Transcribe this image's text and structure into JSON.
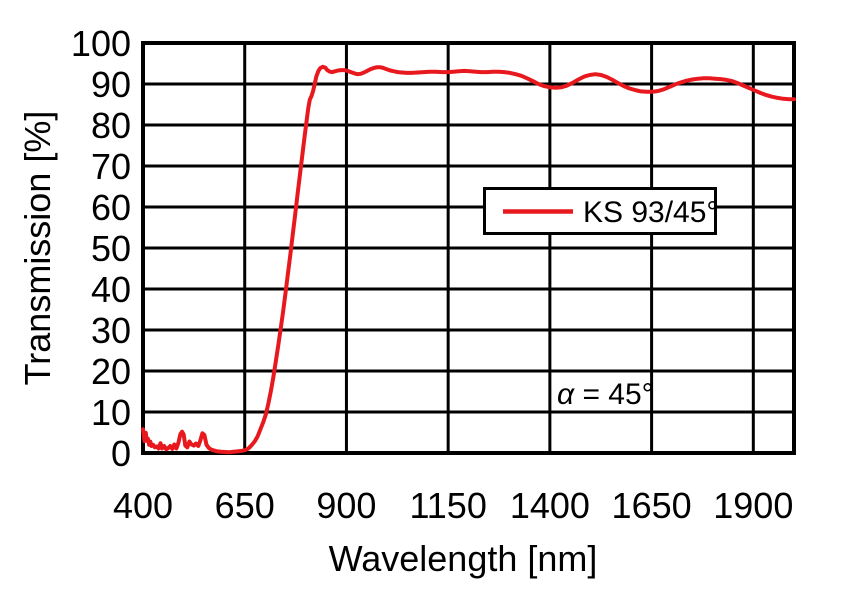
{
  "figure": {
    "background_color": "#ffffff",
    "frame_color": "#000000"
  },
  "chart_data": {
    "type": "line",
    "xlabel": "Wavelength [nm]",
    "ylabel": "Transmission [%]",
    "xlim": [
      400,
      2000
    ],
    "ylim": [
      0,
      100
    ],
    "x_ticks": [
      400,
      650,
      900,
      1150,
      1400,
      1650,
      1900
    ],
    "y_ticks": [
      0,
      10,
      20,
      30,
      40,
      50,
      60,
      70,
      80,
      90,
      100
    ],
    "grid": true,
    "grid_color": "#000000",
    "legend": {
      "label": "KS 93/45°",
      "position": "center right",
      "line_color": "#e8191e"
    },
    "annotation": {
      "symbol": "α",
      "equation": " = 45°",
      "full_text": "α = 45°",
      "x_nm": 1420,
      "y_pct": 14.5
    },
    "series": [
      {
        "name": "KS 93/45°",
        "color": "#e8191e",
        "points": [
          [
            400,
            5.8
          ],
          [
            402,
            4.2
          ],
          [
            404,
            2.9
          ],
          [
            407,
            4.9
          ],
          [
            409,
            3.0
          ],
          [
            412,
            3.5
          ],
          [
            415,
            2.0
          ],
          [
            418,
            2.8
          ],
          [
            421,
            1.7
          ],
          [
            425,
            2.0
          ],
          [
            429,
            1.4
          ],
          [
            434,
            1.6
          ],
          [
            438,
            1.1
          ],
          [
            443,
            2.4
          ],
          [
            447,
            1.1
          ],
          [
            452,
            1.7
          ],
          [
            457,
            0.9
          ],
          [
            462,
            1.2
          ],
          [
            467,
            1.7
          ],
          [
            472,
            1.0
          ],
          [
            477,
            2.1
          ],
          [
            482,
            1.1
          ],
          [
            487,
            2.5
          ],
          [
            492,
            4.6
          ],
          [
            496,
            5.2
          ],
          [
            500,
            4.5
          ],
          [
            504,
            1.8
          ],
          [
            509,
            1.4
          ],
          [
            514,
            2.8
          ],
          [
            519,
            2.1
          ],
          [
            525,
            1.8
          ],
          [
            530,
            2.3
          ],
          [
            536,
            1.7
          ],
          [
            541,
            3.1
          ],
          [
            546,
            4.8
          ],
          [
            551,
            4.4
          ],
          [
            556,
            2.0
          ],
          [
            562,
            1.2
          ],
          [
            568,
            0.8
          ],
          [
            575,
            0.6
          ],
          [
            583,
            0.4
          ],
          [
            592,
            0.3
          ],
          [
            602,
            0.25
          ],
          [
            612,
            0.2
          ],
          [
            622,
            0.3
          ],
          [
            632,
            0.4
          ],
          [
            642,
            0.5
          ],
          [
            651,
            0.7
          ],
          [
            659,
            1.1
          ],
          [
            667,
            1.9
          ],
          [
            675,
            2.9
          ],
          [
            682,
            4.1
          ],
          [
            689,
            5.9
          ],
          [
            696,
            7.6
          ],
          [
            702,
            9.5
          ],
          [
            708,
            12.0
          ],
          [
            714,
            15.0
          ],
          [
            720,
            18.3
          ],
          [
            726,
            22.0
          ],
          [
            732,
            26.0
          ],
          [
            738,
            30.0
          ],
          [
            744,
            34.3
          ],
          [
            750,
            38.8
          ],
          [
            756,
            43.5
          ],
          [
            762,
            48.3
          ],
          [
            768,
            53.2
          ],
          [
            774,
            58.2
          ],
          [
            780,
            63.2
          ],
          [
            786,
            68.2
          ],
          [
            792,
            73.0
          ],
          [
            797,
            77.0
          ],
          [
            802,
            81.0
          ],
          [
            806,
            84.0
          ],
          [
            810,
            86.2
          ],
          [
            814,
            87.0
          ],
          [
            818,
            88.3
          ],
          [
            822,
            90.0
          ],
          [
            826,
            91.8
          ],
          [
            831,
            93.2
          ],
          [
            836,
            93.9
          ],
          [
            842,
            94.2
          ],
          [
            848,
            94.0
          ],
          [
            853,
            93.4
          ],
          [
            859,
            93.0
          ],
          [
            865,
            92.9
          ],
          [
            872,
            93.1
          ],
          [
            879,
            93.3
          ],
          [
            887,
            93.4
          ],
          [
            895,
            93.4
          ],
          [
            903,
            93.2
          ],
          [
            911,
            92.9
          ],
          [
            919,
            92.6
          ],
          [
            927,
            92.4
          ],
          [
            935,
            92.5
          ],
          [
            943,
            92.8
          ],
          [
            951,
            93.2
          ],
          [
            959,
            93.6
          ],
          [
            967,
            93.9
          ],
          [
            975,
            94.1
          ],
          [
            983,
            94.1
          ],
          [
            991,
            93.9
          ],
          [
            999,
            93.6
          ],
          [
            1008,
            93.3
          ],
          [
            1017,
            93.1
          ],
          [
            1027,
            92.9
          ],
          [
            1037,
            92.8
          ],
          [
            1048,
            92.7
          ],
          [
            1060,
            92.7
          ],
          [
            1075,
            92.8
          ],
          [
            1090,
            92.9
          ],
          [
            1105,
            93.0
          ],
          [
            1120,
            93.0
          ],
          [
            1135,
            92.9
          ],
          [
            1150,
            92.9
          ],
          [
            1163,
            93.0
          ],
          [
            1176,
            93.1
          ],
          [
            1190,
            93.2
          ],
          [
            1204,
            93.1
          ],
          [
            1218,
            93.0
          ],
          [
            1232,
            92.9
          ],
          [
            1246,
            92.9
          ],
          [
            1260,
            93.0
          ],
          [
            1274,
            93.0
          ],
          [
            1288,
            92.9
          ],
          [
            1302,
            92.7
          ],
          [
            1316,
            92.4
          ],
          [
            1330,
            92.0
          ],
          [
            1344,
            91.4
          ],
          [
            1358,
            90.7
          ],
          [
            1372,
            90.0
          ],
          [
            1386,
            89.5
          ],
          [
            1400,
            89.2
          ],
          [
            1414,
            89.1
          ],
          [
            1428,
            89.2
          ],
          [
            1442,
            89.6
          ],
          [
            1456,
            90.3
          ],
          [
            1470,
            91.1
          ],
          [
            1484,
            91.8
          ],
          [
            1498,
            92.2
          ],
          [
            1512,
            92.4
          ],
          [
            1526,
            92.2
          ],
          [
            1540,
            91.7
          ],
          [
            1554,
            91.0
          ],
          [
            1568,
            90.2
          ],
          [
            1582,
            89.5
          ],
          [
            1596,
            88.9
          ],
          [
            1610,
            88.5
          ],
          [
            1624,
            88.2
          ],
          [
            1638,
            88.1
          ],
          [
            1652,
            88.1
          ],
          [
            1666,
            88.3
          ],
          [
            1680,
            88.7
          ],
          [
            1694,
            89.3
          ],
          [
            1708,
            89.9
          ],
          [
            1722,
            90.4
          ],
          [
            1736,
            90.8
          ],
          [
            1750,
            91.1
          ],
          [
            1764,
            91.3
          ],
          [
            1778,
            91.4
          ],
          [
            1792,
            91.4
          ],
          [
            1806,
            91.3
          ],
          [
            1820,
            91.2
          ],
          [
            1834,
            91.0
          ],
          [
            1848,
            90.7
          ],
          [
            1862,
            90.2
          ],
          [
            1876,
            89.6
          ],
          [
            1890,
            89.0
          ],
          [
            1904,
            88.4
          ],
          [
            1918,
            87.8
          ],
          [
            1932,
            87.3
          ],
          [
            1946,
            86.9
          ],
          [
            1960,
            86.6
          ],
          [
            1974,
            86.4
          ],
          [
            1988,
            86.3
          ],
          [
            2000,
            86.3
          ]
        ]
      }
    ]
  }
}
